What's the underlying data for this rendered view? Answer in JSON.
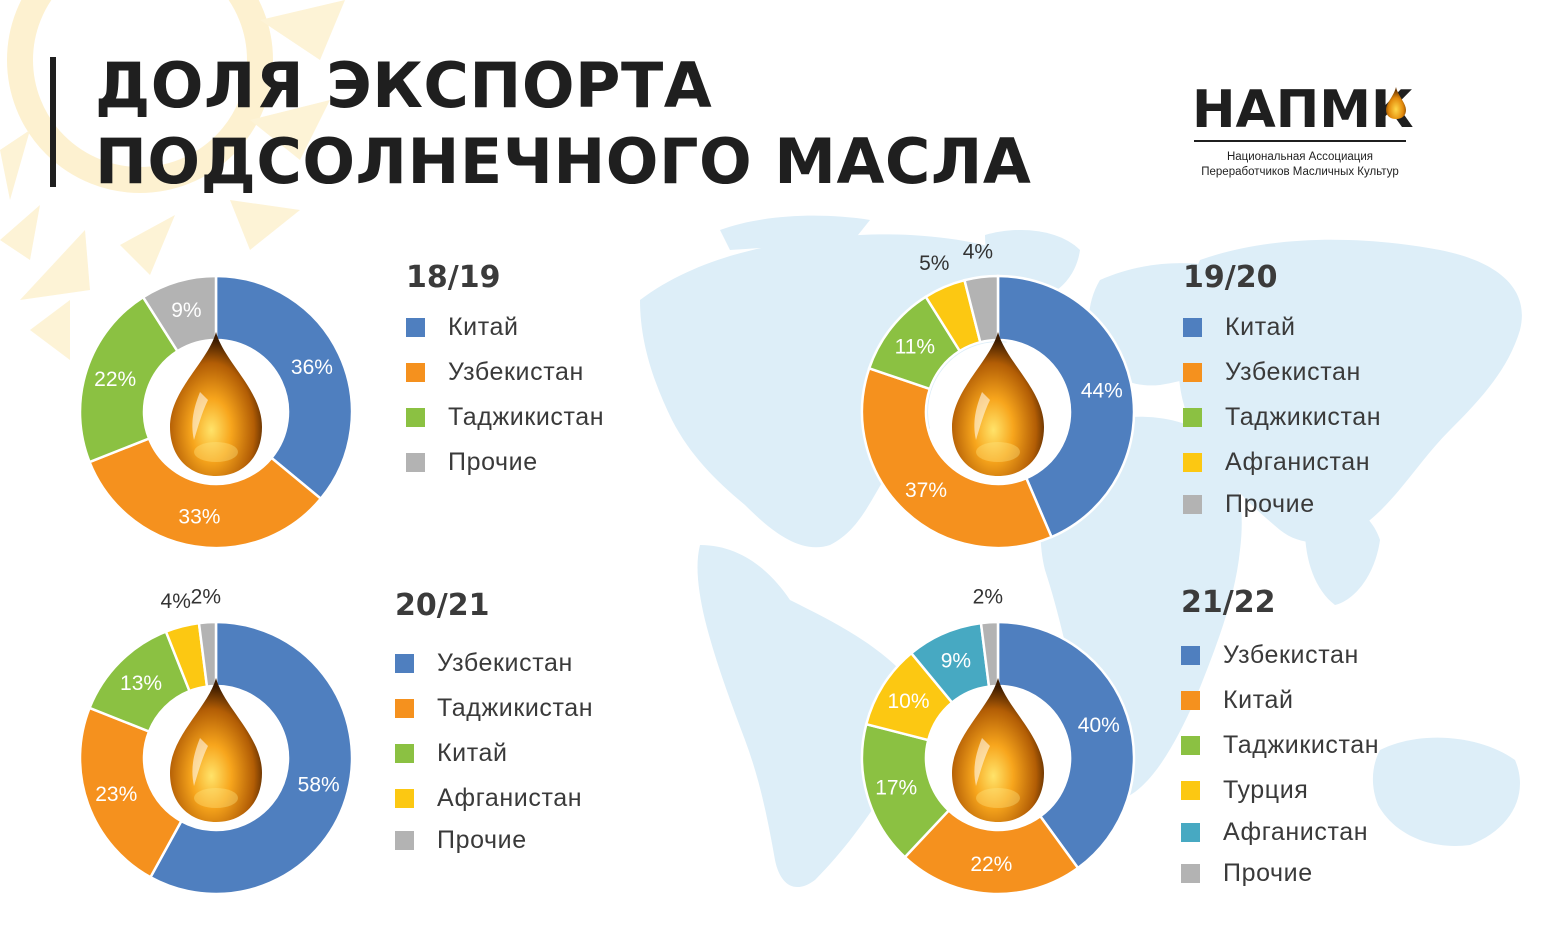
{
  "header": {
    "title_line1": "ДОЛЯ ЭКСПОРТА",
    "title_line2": "ПОДСОЛНЕЧНОГО МАСЛА"
  },
  "logo": {
    "name": "НАПМК",
    "subtitle_line1": "Национальная Ассоциация",
    "subtitle_line2": "Переработчиков Масличных Культур",
    "icon": "oil-drop-icon"
  },
  "colors": {
    "title": "#1f1f1f",
    "map": "#ddeef8",
    "sun": "#fdf3d6",
    "percent_label_on_ring": "#ffffff",
    "percent_label_outside": "#333333"
  },
  "center_icon": "oil-drop-icon",
  "chart_data": [
    {
      "type": "pie",
      "title": "18/19",
      "categories": [
        "Китай",
        "Узбекистан",
        "Таджикистан",
        "Прочие"
      ],
      "values": [
        36,
        33,
        22,
        9
      ],
      "labels": [
        "36%",
        "33%",
        "22%",
        "9%"
      ],
      "colors": [
        "#4f7fbf",
        "#f5911e",
        "#8bc142",
        "#b3b3b3"
      ],
      "legend_position": "right"
    },
    {
      "type": "pie",
      "title": "19/20",
      "categories": [
        "Китай",
        "Узбекистан",
        "Таджикистан",
        "Афганистан",
        "Прочие"
      ],
      "values": [
        44,
        37,
        11,
        5,
        4
      ],
      "labels": [
        "44%",
        "37%",
        "11%",
        "5%",
        "4%"
      ],
      "colors": [
        "#4f7fbf",
        "#f5911e",
        "#8bc142",
        "#fcc812",
        "#b3b3b3"
      ],
      "legend_position": "right"
    },
    {
      "type": "pie",
      "title": "20/21",
      "categories": [
        "Узбекистан",
        "Таджикистан",
        "Китай",
        "Афганистан",
        "Прочие"
      ],
      "values": [
        58,
        23,
        13,
        4,
        2
      ],
      "labels": [
        "58%",
        "23%",
        "13%",
        "4%",
        "2%"
      ],
      "colors": [
        "#4f7fbf",
        "#f5911e",
        "#8bc142",
        "#fcc812",
        "#b3b3b3"
      ],
      "legend_position": "right"
    },
    {
      "type": "pie",
      "title": "21/22",
      "categories": [
        "Узбекистан",
        "Китай",
        "Таджикистан",
        "Турция",
        "Афганистан",
        "Прочие"
      ],
      "values": [
        40,
        22,
        17,
        10,
        9,
        2
      ],
      "labels": [
        "40%",
        "22%",
        "17%",
        "10%",
        "9%",
        "2%"
      ],
      "colors": [
        "#4f7fbf",
        "#f5911e",
        "#8bc142",
        "#fcc812",
        "#47a9c2",
        "#b3b3b3"
      ],
      "legend_position": "right"
    }
  ]
}
